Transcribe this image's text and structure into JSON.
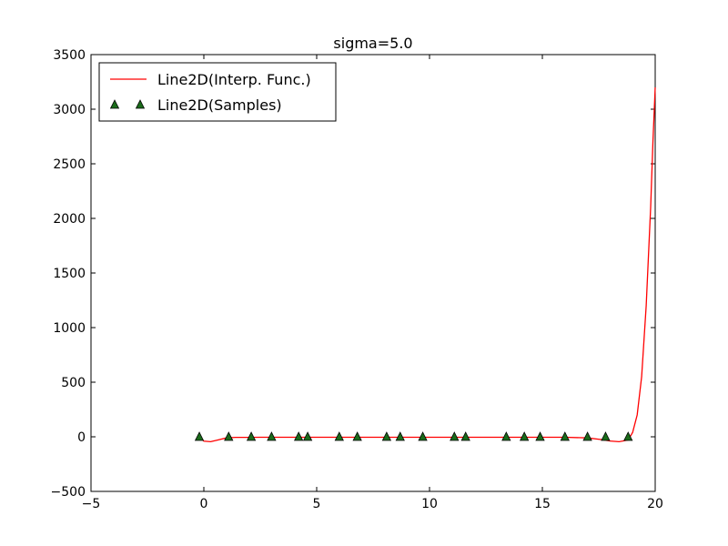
{
  "chart_data": {
    "type": "line",
    "title": "sigma=5.0",
    "xlabel": "",
    "ylabel": "",
    "xlim": [
      -5,
      20
    ],
    "ylim": [
      -500,
      3500
    ],
    "xticks": [
      -5,
      0,
      5,
      10,
      15,
      20
    ],
    "yticks": [
      -500,
      0,
      500,
      1000,
      1500,
      2000,
      2500,
      3000,
      3500
    ],
    "xtick_labels": [
      "−5",
      "0",
      "5",
      "10",
      "15",
      "20"
    ],
    "ytick_labels": [
      "−500",
      "0",
      "500",
      "1000",
      "1500",
      "2000",
      "2500",
      "3000",
      "3500"
    ],
    "grid": false,
    "legend": {
      "placement": "top-left"
    },
    "series": [
      {
        "name": "Line2D(Interp. Func.)",
        "kind": "line",
        "color": "#ff0000",
        "x": [
          -0.2,
          0.0,
          0.3,
          0.6,
          1.0,
          1.4,
          2.0,
          2.5,
          3.0,
          4.0,
          5.0,
          6.0,
          7.0,
          8.0,
          9.0,
          10.0,
          11.0,
          12.0,
          13.0,
          14.0,
          15.0,
          16.0,
          17.0,
          17.6,
          18.0,
          18.4,
          18.8,
          19.0,
          19.2,
          19.4,
          19.6,
          19.8,
          19.9,
          20.0
        ],
        "y": [
          0,
          -40,
          -45,
          -30,
          -10,
          -5,
          -5,
          -4,
          -4,
          -4,
          -4,
          -4,
          -4,
          -4,
          -4,
          -4,
          -4,
          -4,
          -4,
          -4,
          -4,
          -4,
          -10,
          -25,
          -38,
          -45,
          -30,
          40,
          200,
          550,
          1200,
          2100,
          2700,
          3200
        ]
      },
      {
        "name": "Line2D(Samples)",
        "kind": "marker",
        "marker": "triangle",
        "color": "#1a6b1a",
        "x": [
          -0.2,
          1.1,
          2.1,
          3.0,
          4.2,
          4.6,
          6.0,
          6.8,
          8.1,
          8.7,
          9.7,
          11.1,
          11.6,
          13.4,
          14.2,
          14.9,
          16.0,
          17.0,
          17.8,
          18.8
        ],
        "y": [
          0,
          0,
          0,
          0,
          0,
          0,
          0,
          0,
          0,
          0,
          0,
          0,
          0,
          0,
          0,
          0,
          0,
          0,
          0,
          0
        ]
      }
    ]
  }
}
